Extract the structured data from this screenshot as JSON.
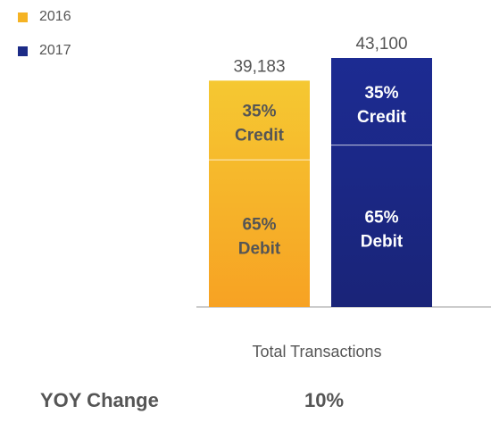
{
  "legend": [
    {
      "label": "2016",
      "color": "#f5b324"
    },
    {
      "label": "2017",
      "color": "#1c2b87"
    }
  ],
  "chart_data": {
    "type": "bar",
    "stacked": true,
    "categories": [
      "2016",
      "2017"
    ],
    "totals": [
      39183,
      43100
    ],
    "total_labels": [
      "39,183",
      "43,100"
    ],
    "segments": [
      {
        "name": "Debit",
        "percent": 65,
        "label_pct": "65%",
        "label_name": "Debit"
      },
      {
        "name": "Credit",
        "percent": 35,
        "label_pct": "35%",
        "label_name": "Credit"
      }
    ],
    "colors": {
      "2016": {
        "top": "#f5c832",
        "bottom": "#f7a223"
      },
      "2017": {
        "top": "#1c2b92",
        "bottom": "#1a2478"
      }
    },
    "xlabel": "Total Transactions",
    "legend_position": "top-left",
    "grid": false
  },
  "footer": {
    "yoy_label": "YOY Change",
    "yoy_value": "10%"
  }
}
